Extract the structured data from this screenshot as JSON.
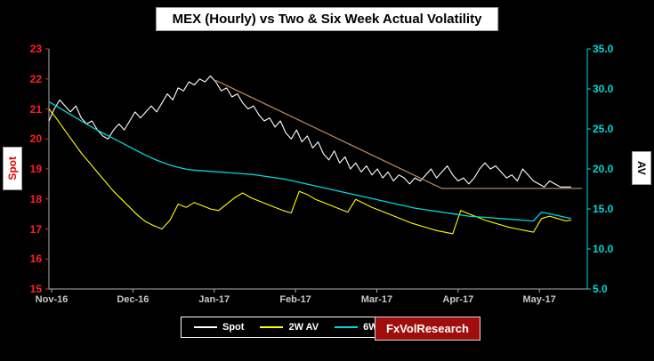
{
  "brand": {
    "label": "FxVolResearch",
    "bg": "#a00d0d"
  },
  "legend": {
    "items": [
      {
        "label": "Spot",
        "color": "#ffffff"
      },
      {
        "label": "2W AV",
        "color": "#ffff00"
      },
      {
        "label": "6Wk",
        "color": "#00d8d8"
      }
    ]
  },
  "chart_data": {
    "type": "line",
    "title": "MEX (Hourly) vs Two & Six Week Actual Volatility",
    "grid": "off",
    "legend_position": "bottom",
    "left_axis": {
      "label": "Spot",
      "min": 15,
      "max": 23,
      "tick_values": [
        23,
        22,
        21,
        20,
        19,
        18,
        17,
        16,
        15
      ],
      "tick_labels": [
        "23",
        "22",
        "21",
        "20",
        "19",
        "18",
        "17",
        "16",
        "15"
      ],
      "color": "#ff2020"
    },
    "right_axis": {
      "label": "AV",
      "min": 5,
      "max": 35,
      "tick_values": [
        35,
        30,
        25,
        20,
        15,
        10,
        5
      ],
      "tick_labels": [
        "35.0",
        "30.0",
        "25.0",
        "20.0",
        "15.0",
        "10.0",
        "5.0"
      ],
      "color": "#00d8d8"
    },
    "x_axis": {
      "labels": [
        "Nov-16",
        "Dec-16",
        "Jan-17",
        "Feb-17",
        "Mar-17",
        "Apr-17",
        "May-17"
      ],
      "positions": [
        0.5,
        15.6,
        30.7,
        45.8,
        60.9,
        76.0,
        91.1
      ],
      "color": "#c8c8c8"
    },
    "series": [
      {
        "name": "Spot",
        "axis": "left",
        "color": "#ffffff",
        "width": 1.1,
        "points": [
          [
            0,
            20.6
          ],
          [
            1,
            21.0
          ],
          [
            2,
            21.3
          ],
          [
            3,
            21.1
          ],
          [
            4,
            20.9
          ],
          [
            5,
            21.1
          ],
          [
            6,
            20.7
          ],
          [
            7,
            20.5
          ],
          [
            8,
            20.6
          ],
          [
            9,
            20.3
          ],
          [
            10,
            20.1
          ],
          [
            11,
            20.0
          ],
          [
            12,
            20.3
          ],
          [
            13,
            20.5
          ],
          [
            14,
            20.3
          ],
          [
            15,
            20.6
          ],
          [
            16,
            20.9
          ],
          [
            17,
            20.7
          ],
          [
            18,
            20.9
          ],
          [
            19,
            21.1
          ],
          [
            20,
            20.9
          ],
          [
            21,
            21.2
          ],
          [
            22,
            21.5
          ],
          [
            23,
            21.3
          ],
          [
            24,
            21.7
          ],
          [
            25,
            21.6
          ],
          [
            26,
            21.9
          ],
          [
            27,
            21.8
          ],
          [
            28,
            22.0
          ],
          [
            29,
            21.9
          ],
          [
            30,
            22.1
          ],
          [
            31,
            21.9
          ],
          [
            32,
            21.6
          ],
          [
            33,
            21.7
          ],
          [
            34,
            21.4
          ],
          [
            35,
            21.5
          ],
          [
            36,
            21.2
          ],
          [
            37,
            21.0
          ],
          [
            38,
            21.1
          ],
          [
            39,
            20.8
          ],
          [
            40,
            20.6
          ],
          [
            41,
            20.7
          ],
          [
            42,
            20.4
          ],
          [
            43,
            20.6
          ],
          [
            44,
            20.2
          ],
          [
            45,
            20.0
          ],
          [
            46,
            20.3
          ],
          [
            47,
            19.9
          ],
          [
            48,
            20.1
          ],
          [
            49,
            19.7
          ],
          [
            50,
            19.9
          ],
          [
            51,
            19.5
          ],
          [
            52,
            19.3
          ],
          [
            53,
            19.6
          ],
          [
            54,
            19.2
          ],
          [
            55,
            19.4
          ],
          [
            56,
            19.0
          ],
          [
            57,
            19.2
          ],
          [
            58,
            18.9
          ],
          [
            59,
            19.1
          ],
          [
            60,
            18.8
          ],
          [
            61,
            19.0
          ],
          [
            62,
            18.7
          ],
          [
            63,
            18.9
          ],
          [
            64,
            18.6
          ],
          [
            65,
            18.8
          ],
          [
            66,
            18.7
          ],
          [
            67,
            18.5
          ],
          [
            68,
            18.7
          ],
          [
            69,
            18.6
          ],
          [
            70,
            18.8
          ],
          [
            71,
            19.0
          ],
          [
            72,
            18.7
          ],
          [
            73,
            18.9
          ],
          [
            74,
            19.1
          ],
          [
            75,
            18.8
          ],
          [
            76,
            18.6
          ],
          [
            77,
            18.7
          ],
          [
            78,
            18.5
          ],
          [
            79,
            18.7
          ],
          [
            80,
            19.0
          ],
          [
            81,
            19.2
          ],
          [
            82,
            19.0
          ],
          [
            83,
            19.1
          ],
          [
            84,
            18.9
          ],
          [
            85,
            18.7
          ],
          [
            86,
            18.8
          ],
          [
            87,
            18.6
          ],
          [
            88,
            19.0
          ],
          [
            89,
            18.8
          ],
          [
            90,
            18.6
          ],
          [
            91,
            18.5
          ],
          [
            92,
            18.4
          ],
          [
            93,
            18.6
          ],
          [
            94,
            18.5
          ],
          [
            95,
            18.4
          ],
          [
            96,
            18.4
          ],
          [
            97,
            18.4
          ]
        ]
      },
      {
        "name": "2W AV",
        "axis": "right",
        "color": "#ffff00",
        "width": 1.1,
        "points": [
          [
            0,
            27.5
          ],
          [
            1.5,
            26.2
          ],
          [
            3,
            24.8
          ],
          [
            4.5,
            23.4
          ],
          [
            6,
            22.0
          ],
          [
            7.5,
            20.8
          ],
          [
            9,
            19.6
          ],
          [
            10.5,
            18.4
          ],
          [
            12,
            17.2
          ],
          [
            13.5,
            16.2
          ],
          [
            15,
            15.2
          ],
          [
            16.5,
            14.2
          ],
          [
            18,
            13.4
          ],
          [
            19.5,
            12.9
          ],
          [
            21,
            12.5
          ],
          [
            22.5,
            13.6
          ],
          [
            24,
            15.6
          ],
          [
            25.5,
            15.2
          ],
          [
            27,
            15.8
          ],
          [
            28.5,
            15.4
          ],
          [
            30,
            15.0
          ],
          [
            31.5,
            14.8
          ],
          [
            33,
            15.6
          ],
          [
            34.5,
            16.4
          ],
          [
            36,
            17.0
          ],
          [
            37.5,
            16.4
          ],
          [
            39,
            16.0
          ],
          [
            40.5,
            15.6
          ],
          [
            42,
            15.2
          ],
          [
            43.5,
            14.8
          ],
          [
            45,
            14.5
          ],
          [
            46.5,
            17.2
          ],
          [
            48,
            16.8
          ],
          [
            49.5,
            16.2
          ],
          [
            51,
            15.8
          ],
          [
            52.5,
            15.4
          ],
          [
            54,
            15.0
          ],
          [
            55.5,
            14.6
          ],
          [
            57,
            16.2
          ],
          [
            58.5,
            15.7
          ],
          [
            60,
            15.2
          ],
          [
            61.5,
            14.8
          ],
          [
            63,
            14.4
          ],
          [
            64.5,
            14.0
          ],
          [
            66,
            13.6
          ],
          [
            67.5,
            13.2
          ],
          [
            69,
            12.9
          ],
          [
            70.5,
            12.6
          ],
          [
            72,
            12.3
          ],
          [
            73.5,
            12.1
          ],
          [
            75,
            11.9
          ],
          [
            76.5,
            14.8
          ],
          [
            78,
            14.4
          ],
          [
            79.5,
            14.0
          ],
          [
            81,
            13.6
          ],
          [
            82.5,
            13.3
          ],
          [
            84,
            13.0
          ],
          [
            85.5,
            12.7
          ],
          [
            87,
            12.5
          ],
          [
            88.5,
            12.3
          ],
          [
            90,
            12.1
          ],
          [
            91.5,
            13.8
          ],
          [
            93,
            14.1
          ],
          [
            94.5,
            13.8
          ],
          [
            96,
            13.5
          ],
          [
            97,
            13.6
          ]
        ]
      },
      {
        "name": "6Wk",
        "axis": "right",
        "color": "#00d8d8",
        "width": 1.3,
        "points": [
          [
            0,
            28.4
          ],
          [
            2,
            27.6
          ],
          [
            4,
            26.8
          ],
          [
            6,
            26.0
          ],
          [
            8,
            25.2
          ],
          [
            10,
            24.5
          ],
          [
            12,
            23.8
          ],
          [
            14,
            23.1
          ],
          [
            16,
            22.4
          ],
          [
            18,
            21.7
          ],
          [
            20,
            21.1
          ],
          [
            22,
            20.6
          ],
          [
            24,
            20.2
          ],
          [
            26,
            19.9
          ],
          [
            28,
            19.8
          ],
          [
            30,
            19.7
          ],
          [
            32,
            19.6
          ],
          [
            34,
            19.5
          ],
          [
            36,
            19.4
          ],
          [
            38,
            19.3
          ],
          [
            40,
            19.1
          ],
          [
            42,
            18.9
          ],
          [
            44,
            18.7
          ],
          [
            46,
            18.4
          ],
          [
            48,
            18.1
          ],
          [
            50,
            17.8
          ],
          [
            52,
            17.5
          ],
          [
            54,
            17.2
          ],
          [
            56,
            16.9
          ],
          [
            58,
            16.6
          ],
          [
            60,
            16.3
          ],
          [
            62,
            16.0
          ],
          [
            64,
            15.7
          ],
          [
            66,
            15.4
          ],
          [
            68,
            15.1
          ],
          [
            70,
            14.9
          ],
          [
            72,
            14.7
          ],
          [
            74,
            14.5
          ],
          [
            76,
            14.3
          ],
          [
            78,
            14.1
          ],
          [
            80,
            14.0
          ],
          [
            82,
            13.9
          ],
          [
            84,
            13.8
          ],
          [
            86,
            13.7
          ],
          [
            88,
            13.6
          ],
          [
            90,
            13.5
          ],
          [
            91.5,
            14.6
          ],
          [
            93,
            14.4
          ],
          [
            95,
            14.1
          ],
          [
            97,
            13.8
          ]
        ]
      },
      {
        "name": "trendline",
        "axis": "left",
        "color": "#b5835a",
        "width": 1.3,
        "points": [
          [
            31,
            21.95
          ],
          [
            73,
            18.35
          ],
          [
            99,
            18.35
          ]
        ]
      }
    ]
  }
}
